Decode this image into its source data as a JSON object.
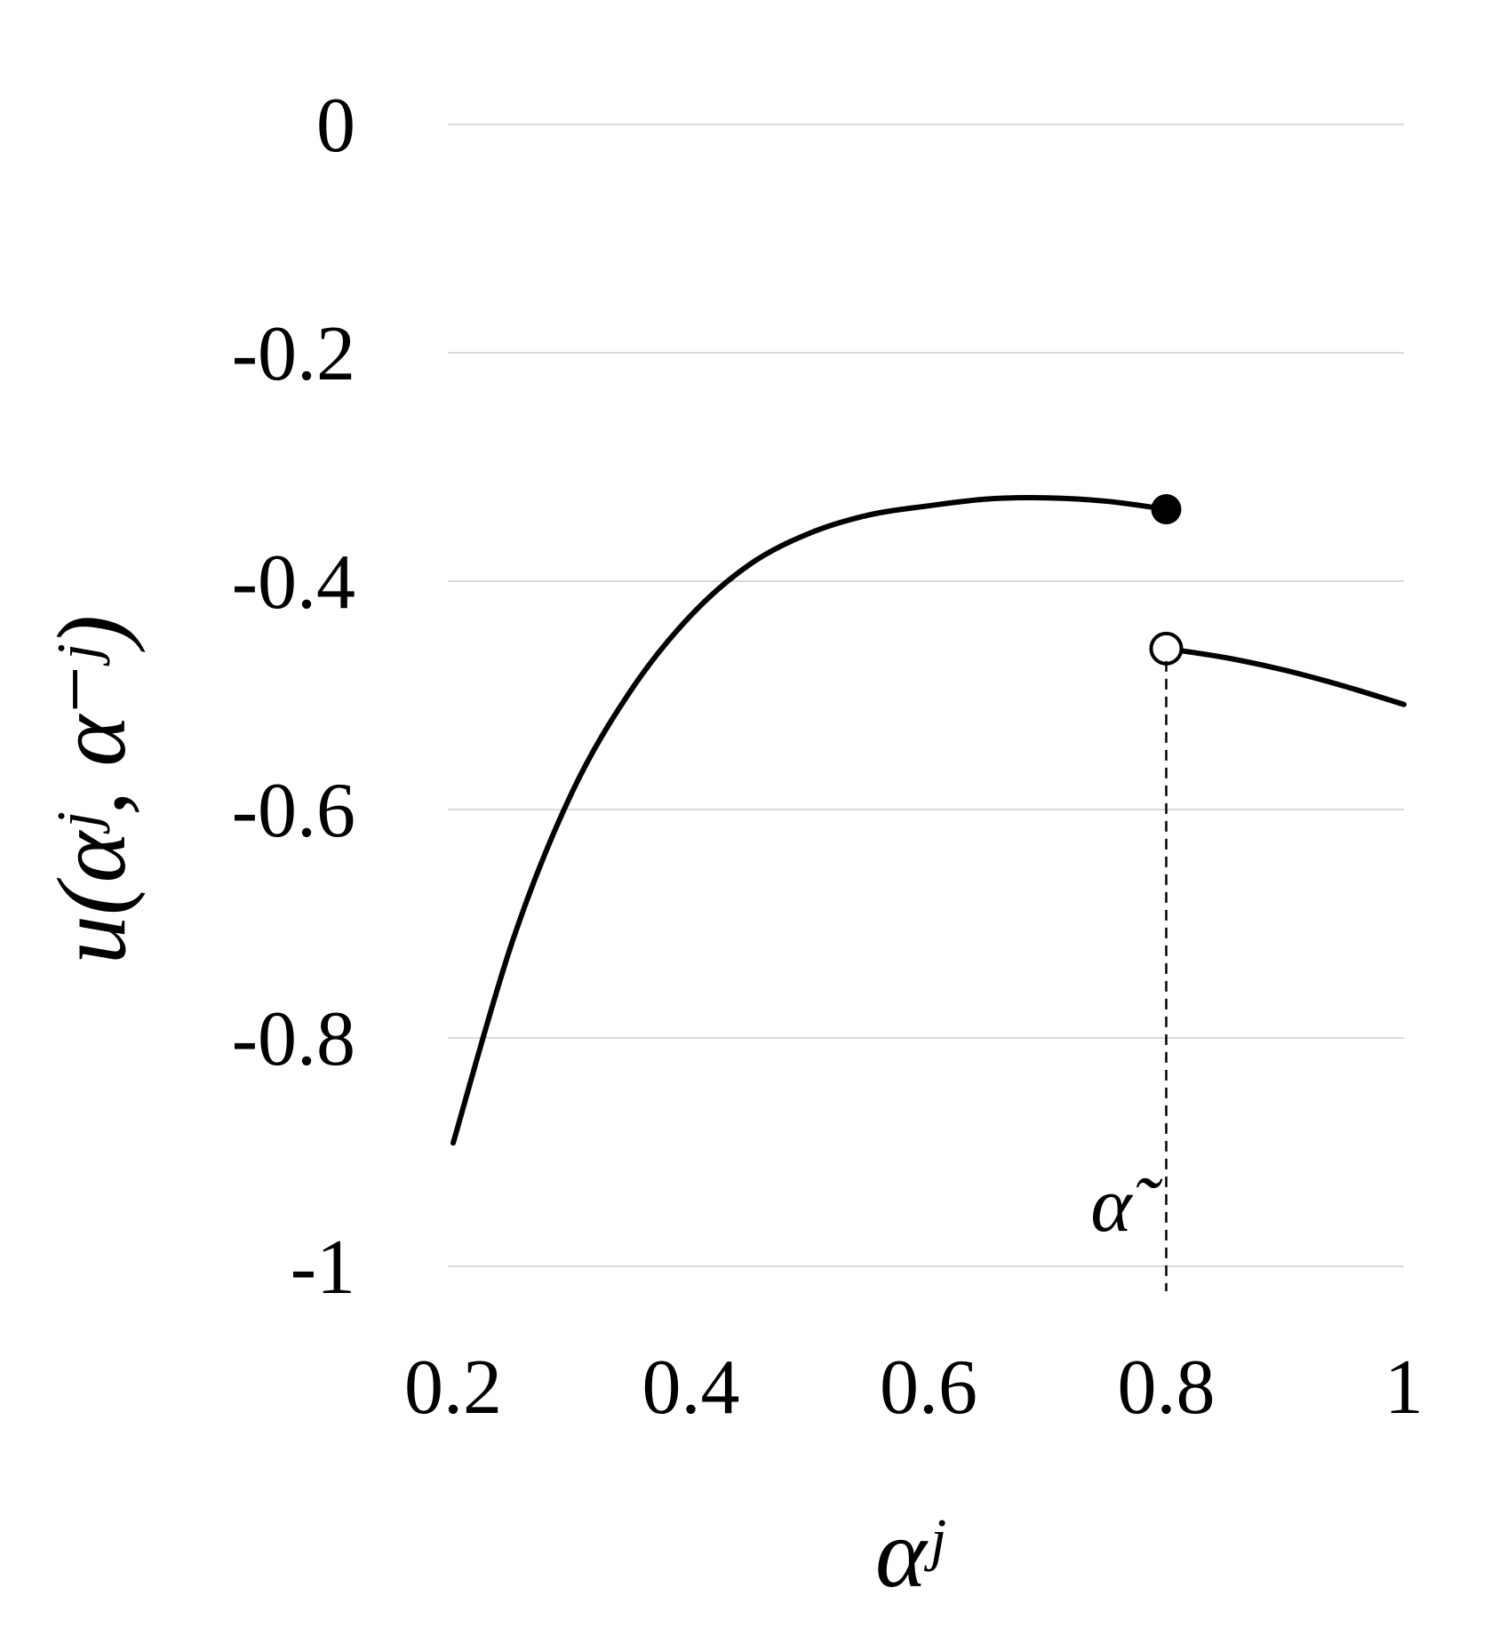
{
  "chart_data": {
    "type": "line",
    "title": "",
    "xlabel": "αʲ",
    "ylabel": "u(αʲ, α⁻ʲ)",
    "xlim": [
      0.2,
      1.0
    ],
    "ylim": [
      -1.0,
      0.0
    ],
    "grid": "horizontal",
    "x_ticks": [
      "0.2",
      "0.4",
      "0.6",
      "0.8",
      "1"
    ],
    "y_ticks": [
      "0",
      "-0.2",
      "-0.4",
      "-0.6",
      "-0.8",
      "-1"
    ],
    "x_tick_values": [
      0.2,
      0.4,
      0.6,
      0.8,
      1.0
    ],
    "y_tick_values": [
      0.0,
      -0.2,
      -0.4,
      -0.6,
      -0.8,
      -1.0
    ],
    "series": [
      {
        "x": [
          0.2,
          0.25,
          0.3,
          0.35,
          0.4,
          0.45,
          0.5,
          0.55,
          0.6,
          0.65,
          0.7,
          0.75,
          0.8
        ],
        "y": [
          -0.892,
          -0.715,
          -0.585,
          -0.495,
          -0.43,
          -0.385,
          -0.358,
          -0.342,
          -0.334,
          -0.328,
          -0.327,
          -0.33,
          -0.337
        ]
      },
      {
        "x": [
          0.8,
          0.85,
          0.9,
          0.95,
          1.0
        ],
        "y": [
          -0.459,
          -0.467,
          -0.478,
          -0.492,
          -0.508
        ]
      }
    ],
    "markers": [
      {
        "x": 0.8,
        "y": -0.337,
        "style": "filled"
      },
      {
        "x": 0.8,
        "y": -0.459,
        "style": "open"
      }
    ],
    "annotations": [
      {
        "text": "α̃",
        "x": 0.8,
        "y": -1.0,
        "guide": "dashed-vertical"
      }
    ]
  }
}
